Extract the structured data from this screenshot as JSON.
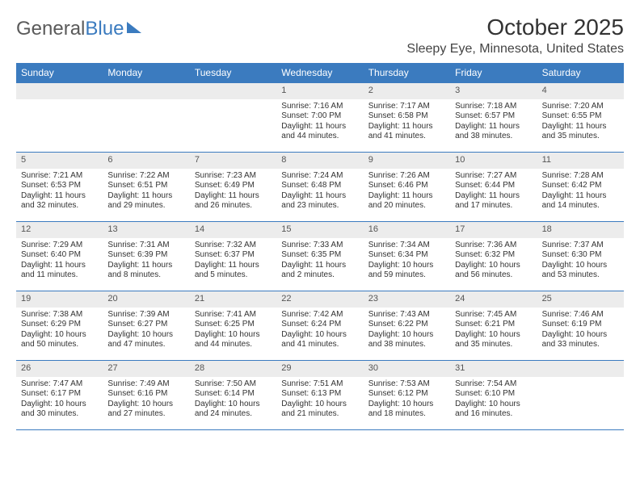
{
  "logo": {
    "text1": "General",
    "text2": "Blue"
  },
  "title": "October 2025",
  "location": "Sleepy Eye, Minnesota, United States",
  "colors": {
    "header_bg": "#3b7bbf",
    "header_text": "#ffffff",
    "daynum_bg": "#ececec",
    "border": "#3b7bbf",
    "text": "#333333"
  },
  "layout": {
    "columns": 7,
    "rows": 5,
    "leading_blanks": 3
  },
  "weekdays": [
    "Sunday",
    "Monday",
    "Tuesday",
    "Wednesday",
    "Thursday",
    "Friday",
    "Saturday"
  ],
  "days": [
    {
      "n": 1,
      "sunrise": "7:16 AM",
      "sunset": "7:00 PM",
      "daylight": "11 hours and 44 minutes."
    },
    {
      "n": 2,
      "sunrise": "7:17 AM",
      "sunset": "6:58 PM",
      "daylight": "11 hours and 41 minutes."
    },
    {
      "n": 3,
      "sunrise": "7:18 AM",
      "sunset": "6:57 PM",
      "daylight": "11 hours and 38 minutes."
    },
    {
      "n": 4,
      "sunrise": "7:20 AM",
      "sunset": "6:55 PM",
      "daylight": "11 hours and 35 minutes."
    },
    {
      "n": 5,
      "sunrise": "7:21 AM",
      "sunset": "6:53 PM",
      "daylight": "11 hours and 32 minutes."
    },
    {
      "n": 6,
      "sunrise": "7:22 AM",
      "sunset": "6:51 PM",
      "daylight": "11 hours and 29 minutes."
    },
    {
      "n": 7,
      "sunrise": "7:23 AM",
      "sunset": "6:49 PM",
      "daylight": "11 hours and 26 minutes."
    },
    {
      "n": 8,
      "sunrise": "7:24 AM",
      "sunset": "6:48 PM",
      "daylight": "11 hours and 23 minutes."
    },
    {
      "n": 9,
      "sunrise": "7:26 AM",
      "sunset": "6:46 PM",
      "daylight": "11 hours and 20 minutes."
    },
    {
      "n": 10,
      "sunrise": "7:27 AM",
      "sunset": "6:44 PM",
      "daylight": "11 hours and 17 minutes."
    },
    {
      "n": 11,
      "sunrise": "7:28 AM",
      "sunset": "6:42 PM",
      "daylight": "11 hours and 14 minutes."
    },
    {
      "n": 12,
      "sunrise": "7:29 AM",
      "sunset": "6:40 PM",
      "daylight": "11 hours and 11 minutes."
    },
    {
      "n": 13,
      "sunrise": "7:31 AM",
      "sunset": "6:39 PM",
      "daylight": "11 hours and 8 minutes."
    },
    {
      "n": 14,
      "sunrise": "7:32 AM",
      "sunset": "6:37 PM",
      "daylight": "11 hours and 5 minutes."
    },
    {
      "n": 15,
      "sunrise": "7:33 AM",
      "sunset": "6:35 PM",
      "daylight": "11 hours and 2 minutes."
    },
    {
      "n": 16,
      "sunrise": "7:34 AM",
      "sunset": "6:34 PM",
      "daylight": "10 hours and 59 minutes."
    },
    {
      "n": 17,
      "sunrise": "7:36 AM",
      "sunset": "6:32 PM",
      "daylight": "10 hours and 56 minutes."
    },
    {
      "n": 18,
      "sunrise": "7:37 AM",
      "sunset": "6:30 PM",
      "daylight": "10 hours and 53 minutes."
    },
    {
      "n": 19,
      "sunrise": "7:38 AM",
      "sunset": "6:29 PM",
      "daylight": "10 hours and 50 minutes."
    },
    {
      "n": 20,
      "sunrise": "7:39 AM",
      "sunset": "6:27 PM",
      "daylight": "10 hours and 47 minutes."
    },
    {
      "n": 21,
      "sunrise": "7:41 AM",
      "sunset": "6:25 PM",
      "daylight": "10 hours and 44 minutes."
    },
    {
      "n": 22,
      "sunrise": "7:42 AM",
      "sunset": "6:24 PM",
      "daylight": "10 hours and 41 minutes."
    },
    {
      "n": 23,
      "sunrise": "7:43 AM",
      "sunset": "6:22 PM",
      "daylight": "10 hours and 38 minutes."
    },
    {
      "n": 24,
      "sunrise": "7:45 AM",
      "sunset": "6:21 PM",
      "daylight": "10 hours and 35 minutes."
    },
    {
      "n": 25,
      "sunrise": "7:46 AM",
      "sunset": "6:19 PM",
      "daylight": "10 hours and 33 minutes."
    },
    {
      "n": 26,
      "sunrise": "7:47 AM",
      "sunset": "6:17 PM",
      "daylight": "10 hours and 30 minutes."
    },
    {
      "n": 27,
      "sunrise": "7:49 AM",
      "sunset": "6:16 PM",
      "daylight": "10 hours and 27 minutes."
    },
    {
      "n": 28,
      "sunrise": "7:50 AM",
      "sunset": "6:14 PM",
      "daylight": "10 hours and 24 minutes."
    },
    {
      "n": 29,
      "sunrise": "7:51 AM",
      "sunset": "6:13 PM",
      "daylight": "10 hours and 21 minutes."
    },
    {
      "n": 30,
      "sunrise": "7:53 AM",
      "sunset": "6:12 PM",
      "daylight": "10 hours and 18 minutes."
    },
    {
      "n": 31,
      "sunrise": "7:54 AM",
      "sunset": "6:10 PM",
      "daylight": "10 hours and 16 minutes."
    }
  ],
  "labels": {
    "sunrise": "Sunrise:",
    "sunset": "Sunset:",
    "daylight": "Daylight:"
  }
}
